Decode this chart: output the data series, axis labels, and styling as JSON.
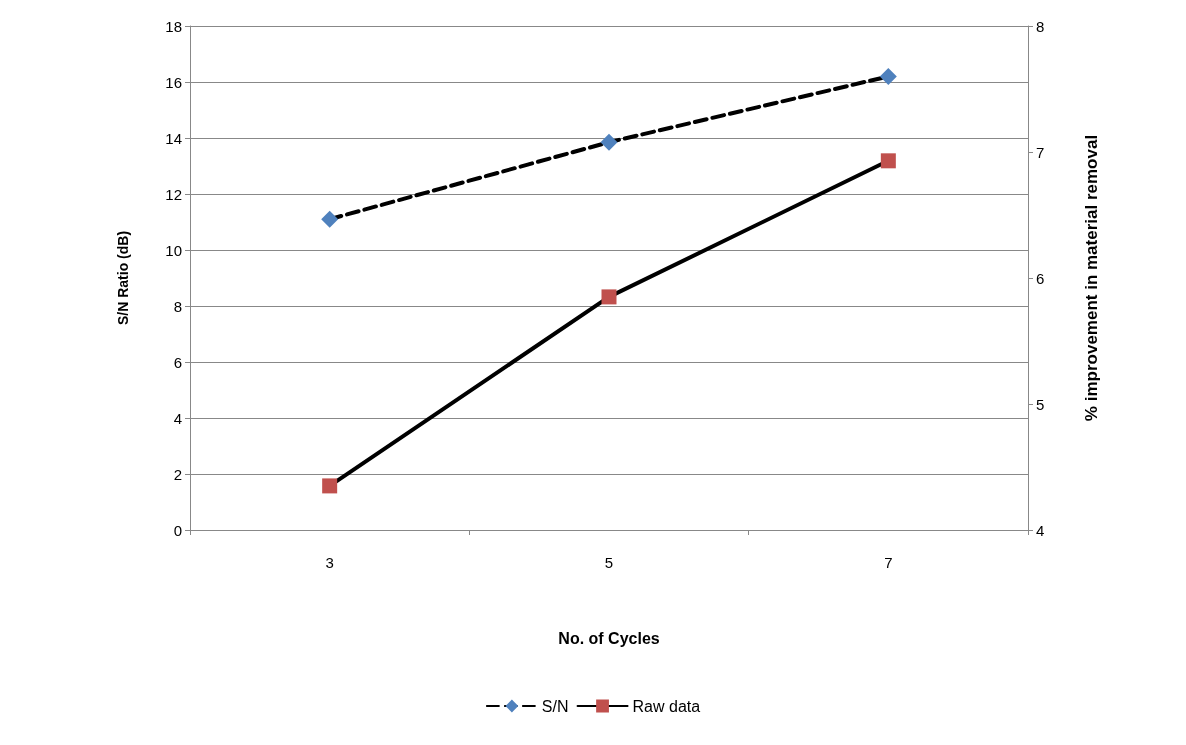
{
  "chart_data": {
    "type": "line",
    "xlabel": "No. of Cycles",
    "ylabel": "S/N Ratio (dB)",
    "y2label": "% improvement in material removal",
    "categories": [
      "3",
      "5",
      "7"
    ],
    "series": [
      {
        "name": "S/N",
        "color": "#4f81bd",
        "values": [
          11.1,
          13.85,
          16.2
        ],
        "marker": "diamond",
        "line_style": "dashed"
      },
      {
        "name": "Raw data",
        "color": "#c0504d",
        "values": [
          4.35,
          5.85,
          6.93
        ],
        "marker": "square",
        "line_style": "solid",
        "axis": "y2"
      }
    ],
    "ylim": [
      0,
      18
    ],
    "yticks": [
      0,
      2,
      4,
      6,
      8,
      10,
      12,
      14,
      16,
      18
    ],
    "y2lim": [
      4,
      8
    ],
    "y2ticks": [
      4,
      5,
      6,
      7,
      8
    ],
    "grid": "y",
    "legend": "bottom"
  }
}
